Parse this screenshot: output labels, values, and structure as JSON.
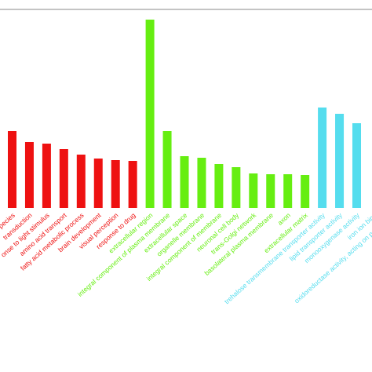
{
  "chart_data": {
    "type": "bar",
    "categories": [
      "pecies",
      "transduction",
      "onse to light stimulus",
      "amino acid transport",
      "fatty acid metabolic process",
      "brain development",
      "visual perception",
      "response to drug",
      "extracellular region",
      "integral component of plasma membrane",
      "extracellular space",
      "organelle membrane",
      "integral component of membrane",
      "neuronal cell body",
      "trans-Golgi network",
      "basolateral plasma membrane",
      "axon",
      "extracellular matrix",
      "trehalose transmembrane transporter activity",
      "lipid transporter activity",
      "monooxygenase activity",
      "iron ion bind",
      "oxidoreductase activity, acting on paired don"
    ],
    "values": [
      98,
      84,
      82,
      75,
      68,
      63,
      61,
      60,
      240,
      98,
      66,
      64,
      56,
      52,
      44,
      43,
      43,
      42,
      128,
      120,
      108,
      null,
      null
    ],
    "colors": [
      "#ee1111",
      "#ee1111",
      "#ee1111",
      "#ee1111",
      "#ee1111",
      "#ee1111",
      "#ee1111",
      "#ee1111",
      "#66ee11",
      "#66ee11",
      "#66ee11",
      "#66ee11",
      "#66ee11",
      "#66ee11",
      "#66ee11",
      "#66ee11",
      "#66ee11",
      "#66ee11",
      "#55ddee",
      "#55ddee",
      "#55ddee",
      "#55ddee",
      "#55ddee"
    ],
    "ylim": [
      0,
      253
    ]
  }
}
